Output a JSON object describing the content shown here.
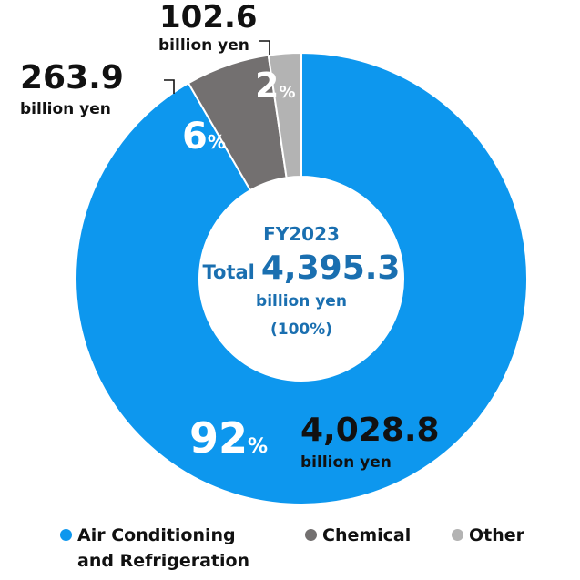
{
  "chart_data": {
    "type": "pie",
    "style": "donut",
    "center": {
      "line1": "FY2023",
      "total_word": "Total",
      "total_value": "4,395.3",
      "unit": "billion yen",
      "percent": "(100%)"
    },
    "total": 4395.3,
    "slices": [
      {
        "key": "air",
        "label": [
          "Air Conditioning",
          "and Refrigeration"
        ],
        "value": 4028.8,
        "value_text": "4,028.8",
        "unit": "billion yen",
        "percent": "92",
        "percent_sign": "%",
        "color": "#0d97ee"
      },
      {
        "key": "chemical",
        "label": [
          "Chemical"
        ],
        "value": 263.9,
        "value_text": "263.9",
        "unit": "billion yen",
        "percent": "6",
        "percent_sign": "%",
        "color": "#737070"
      },
      {
        "key": "other",
        "label": [
          "Other"
        ],
        "value": 102.6,
        "value_text": "102.6",
        "unit": "billion yen",
        "percent": "2",
        "percent_sign": "%",
        "color": "#b3b3b3"
      }
    ],
    "legend_placement": "bottom"
  }
}
